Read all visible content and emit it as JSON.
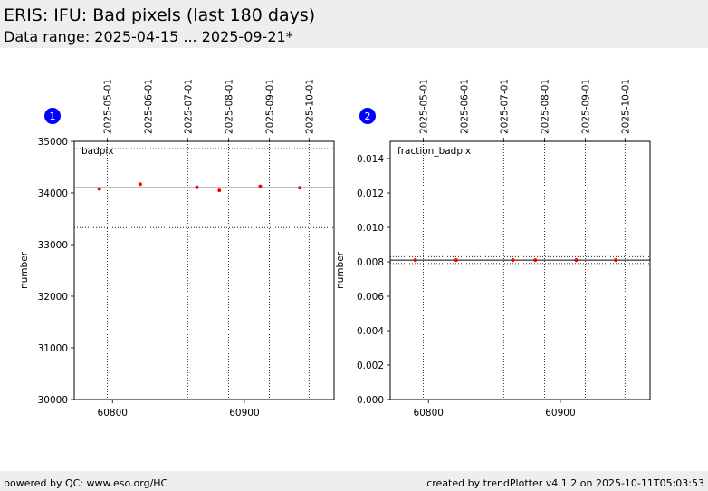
{
  "page": {
    "title": "ERIS: IFU: Bad pixels (last 180 days)",
    "subtitle": "Data range: 2025-04-15 ... 2025-09-21*"
  },
  "footer": {
    "left": "powered by QC: www.eso.org/HC",
    "right": "created by trendPlotter v4.1.2 on 2025-10-11T05:03:53"
  },
  "colors": {
    "points": "#ff0000",
    "badge": "#0000ff",
    "header_bg": "#eeeeee"
  },
  "chart_data": [
    {
      "type": "scatter",
      "badge": "1",
      "series_label": "badpix",
      "ylabel": "number",
      "xlim": [
        60771,
        60968
      ],
      "ylim": [
        30000,
        35000
      ],
      "x_ticks": [
        60800,
        60900
      ],
      "x_tick_labels": [
        "60800",
        "60900"
      ],
      "y_ticks": [
        30000,
        31000,
        32000,
        33000,
        34000,
        35000
      ],
      "y_tick_labels": [
        "30000",
        "31000",
        "32000",
        "33000",
        "34000",
        "35000"
      ],
      "date_ticks": [
        {
          "mjd": 60796,
          "label": "2025-05-01"
        },
        {
          "mjd": 60827,
          "label": "2025-06-01"
        },
        {
          "mjd": 60857,
          "label": "2025-07-01"
        },
        {
          "mjd": 60888,
          "label": "2025-08-01"
        },
        {
          "mjd": 60919,
          "label": "2025-09-01"
        },
        {
          "mjd": 60949,
          "label": "2025-10-01"
        }
      ],
      "x": [
        60790,
        60821,
        60864,
        60881,
        60912,
        60942
      ],
      "y": [
        34080,
        34170,
        34110,
        34050,
        34130,
        34100
      ],
      "ref_line": 34100,
      "limit_lines": [
        34860,
        33330
      ]
    },
    {
      "type": "scatter",
      "badge": "2",
      "series_label": "fraction_badpix",
      "ylabel": "number",
      "xlim": [
        60771,
        60968
      ],
      "ylim": [
        0.0,
        0.015
      ],
      "x_ticks": [
        60800,
        60900
      ],
      "x_tick_labels": [
        "60800",
        "60900"
      ],
      "y_ticks": [
        0.0,
        0.002,
        0.004,
        0.006,
        0.008,
        0.01,
        0.012,
        0.014
      ],
      "y_tick_labels": [
        "0.000",
        "0.002",
        "0.004",
        "0.006",
        "0.008",
        "0.010",
        "0.012",
        "0.014"
      ],
      "date_ticks": [
        {
          "mjd": 60796,
          "label": "2025-05-01"
        },
        {
          "mjd": 60827,
          "label": "2025-06-01"
        },
        {
          "mjd": 60857,
          "label": "2025-07-01"
        },
        {
          "mjd": 60888,
          "label": "2025-08-01"
        },
        {
          "mjd": 60919,
          "label": "2025-09-01"
        },
        {
          "mjd": 60949,
          "label": "2025-10-01"
        }
      ],
      "x": [
        60790,
        60821,
        60864,
        60881,
        60912,
        60942
      ],
      "y": [
        0.0081,
        0.0081,
        0.0081,
        0.0081,
        0.0081,
        0.0081
      ],
      "ref_line": 0.0081,
      "limit_lines": [
        0.0083,
        0.0079
      ]
    }
  ]
}
